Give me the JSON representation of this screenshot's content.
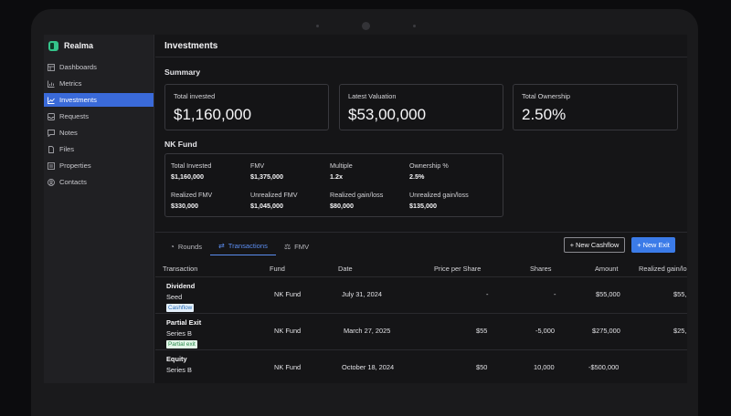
{
  "app": {
    "name": "Realma"
  },
  "sidebar": {
    "items": [
      {
        "label": "Dashboards",
        "icon": "dashboard-icon",
        "active": false
      },
      {
        "label": "Metrics",
        "icon": "chart-icon",
        "active": false
      },
      {
        "label": "Investments",
        "icon": "trend-icon",
        "active": true
      },
      {
        "label": "Requests",
        "icon": "inbox-icon",
        "active": false
      },
      {
        "label": "Notes",
        "icon": "note-icon",
        "active": false
      },
      {
        "label": "Files",
        "icon": "file-icon",
        "active": false
      },
      {
        "label": "Properties",
        "icon": "list-icon",
        "active": false
      },
      {
        "label": "Contacts",
        "icon": "contacts-icon",
        "active": false
      }
    ]
  },
  "header": {
    "title": "Investments"
  },
  "summary": {
    "title": "Summary",
    "cards": [
      {
        "label": "Total invested",
        "value": "$1,160,000"
      },
      {
        "label": "Latest Valuation",
        "value": "$53,00,000"
      },
      {
        "label": "Total Ownership",
        "value": "2.50%"
      }
    ]
  },
  "fund": {
    "title": "NK Fund",
    "metrics": [
      {
        "label": "Total Invested",
        "value": "$1,160,000"
      },
      {
        "label": "FMV",
        "value": "$1,375,000"
      },
      {
        "label": "Multiple",
        "value": "1.2x"
      },
      {
        "label": "Ownership %",
        "value": "2.5%"
      },
      {
        "label": "Realized FMV",
        "value": "$330,000"
      },
      {
        "label": "Unrealized FMV",
        "value": "$1,045,000"
      },
      {
        "label": "Realized gain/loss",
        "value": "$80,000"
      },
      {
        "label": "Unrealized gain/loss",
        "value": "$135,000"
      }
    ]
  },
  "tabs": [
    {
      "label": "Rounds",
      "icon": "pie-icon",
      "active": false
    },
    {
      "label": "Transactions",
      "icon": "swap-icon",
      "active": true
    },
    {
      "label": "FMV",
      "icon": "scale-icon",
      "active": false
    }
  ],
  "actions": {
    "new_cashflow": "+ New Cashflow",
    "new_exit": "+ New Exit"
  },
  "table": {
    "headers": [
      "Transaction",
      "Fund",
      "Date",
      "Price per Share",
      "Shares",
      "Amount",
      "Realized gain/lo"
    ],
    "rows": [
      {
        "title": "Dividend",
        "subtitle": "Seed",
        "badge": "Cashflow",
        "fund": "NK Fund",
        "date": "July 31, 2024",
        "price": "-",
        "shares": "-",
        "amount": "$55,000",
        "realized": "$55,"
      },
      {
        "title": "Partial Exit",
        "subtitle": "Series B",
        "badge": "Partial exit",
        "fund": "NK Fund",
        "date": "March 27, 2025",
        "price": "$55",
        "shares": "-5,000",
        "amount": "$275,000",
        "realized": "$25,"
      },
      {
        "title": "Equity",
        "subtitle": "Series B",
        "badge": "",
        "fund": "NK Fund",
        "date": "October 18, 2024",
        "price": "$50",
        "shares": "10,000",
        "amount": "-$500,000",
        "realized": ""
      }
    ]
  }
}
